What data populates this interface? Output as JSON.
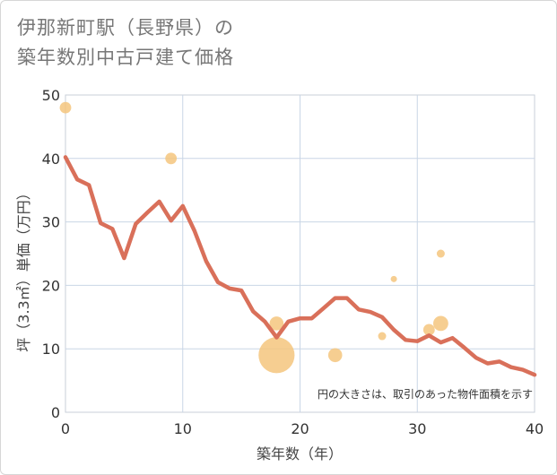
{
  "title_lines": [
    "伊那新町駅（長野県）の",
    "築年数別中古戸建て価格"
  ],
  "chart_data": {
    "type": "line+scatter",
    "title": "伊那新町駅（長野県）の築年数別中古戸建て価格",
    "xlabel": "築年数（年）",
    "ylabel": "坪（3.3㎡）単価（万円）",
    "xlim": [
      0,
      40
    ],
    "ylim": [
      0,
      50
    ],
    "xticks": [
      0,
      10,
      20,
      30,
      40
    ],
    "yticks": [
      0,
      10,
      20,
      30,
      40,
      50
    ],
    "grid": true,
    "note": "円の大きさは、取引のあった物件面積を示す",
    "line_color": "#d9705a",
    "bubble_color": "#f5c57e",
    "line": {
      "x": [
        0,
        1,
        2,
        3,
        4,
        5,
        6,
        7,
        8,
        9,
        10,
        11,
        12,
        13,
        14,
        15,
        16,
        17,
        18,
        19,
        20,
        21,
        22,
        23,
        24,
        25,
        26,
        27,
        28,
        29,
        30,
        31,
        32,
        33,
        34,
        35,
        36,
        37,
        38,
        39,
        40
      ],
      "y": [
        40.2,
        36.7,
        35.8,
        29.8,
        28.9,
        24.3,
        29.7,
        31.5,
        33.2,
        30.2,
        32.5,
        28.6,
        23.8,
        20.5,
        19.5,
        19.2,
        15.9,
        14.3,
        11.8,
        14.3,
        14.8,
        14.8,
        16.4,
        18.0,
        18.0,
        16.2,
        15.8,
        15.0,
        13.0,
        11.4,
        11.2,
        12.1,
        11.0,
        11.7,
        10.2,
        8.6,
        7.7,
        8.0,
        7.1,
        6.7,
        5.9
      ]
    },
    "bubbles": [
      {
        "x": 0,
        "y": 48,
        "size": 2
      },
      {
        "x": 9,
        "y": 40,
        "size": 2
      },
      {
        "x": 18,
        "y": 14,
        "size": 3
      },
      {
        "x": 18,
        "y": 9,
        "size": 20
      },
      {
        "x": 23,
        "y": 9,
        "size": 3
      },
      {
        "x": 27,
        "y": 12,
        "size": 1
      },
      {
        "x": 28,
        "y": 21,
        "size": 0.6
      },
      {
        "x": 31,
        "y": 13,
        "size": 2
      },
      {
        "x": 32,
        "y": 25,
        "size": 1
      },
      {
        "x": 32,
        "y": 14,
        "size": 3.5
      }
    ]
  }
}
